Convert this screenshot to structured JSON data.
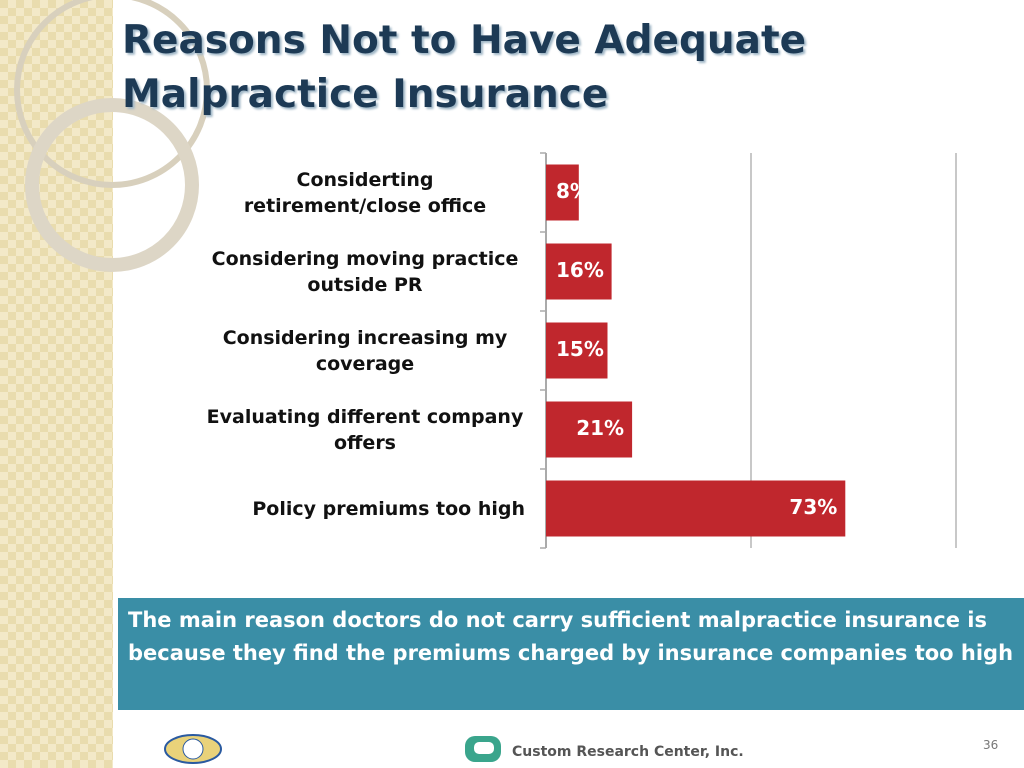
{
  "chart_data": {
    "type": "bar",
    "orientation": "horizontal",
    "title": "Reasons Not to Have Adequate Malpractice Insurance",
    "categories": [
      "Considerting retirement/close office",
      "Considering moving practice outside PR",
      "Considering increasing my coverage",
      "Evaluating different company offers",
      "Policy premiums too high"
    ],
    "values": [
      8,
      16,
      15,
      21,
      73
    ],
    "value_labels": [
      "8%",
      "16%",
      "15%",
      "21%",
      "73%"
    ],
    "color": "#c0272d",
    "xlim": [
      0,
      100
    ],
    "xticks": [
      0,
      50,
      100
    ],
    "grid": true,
    "annotation": "The main reason doctors do not carry sufficient malpractice insurance is because they find the premiums charged by insurance companies too high"
  },
  "footer": {
    "company": "Custom Research Center, Inc.",
    "page": 36
  }
}
